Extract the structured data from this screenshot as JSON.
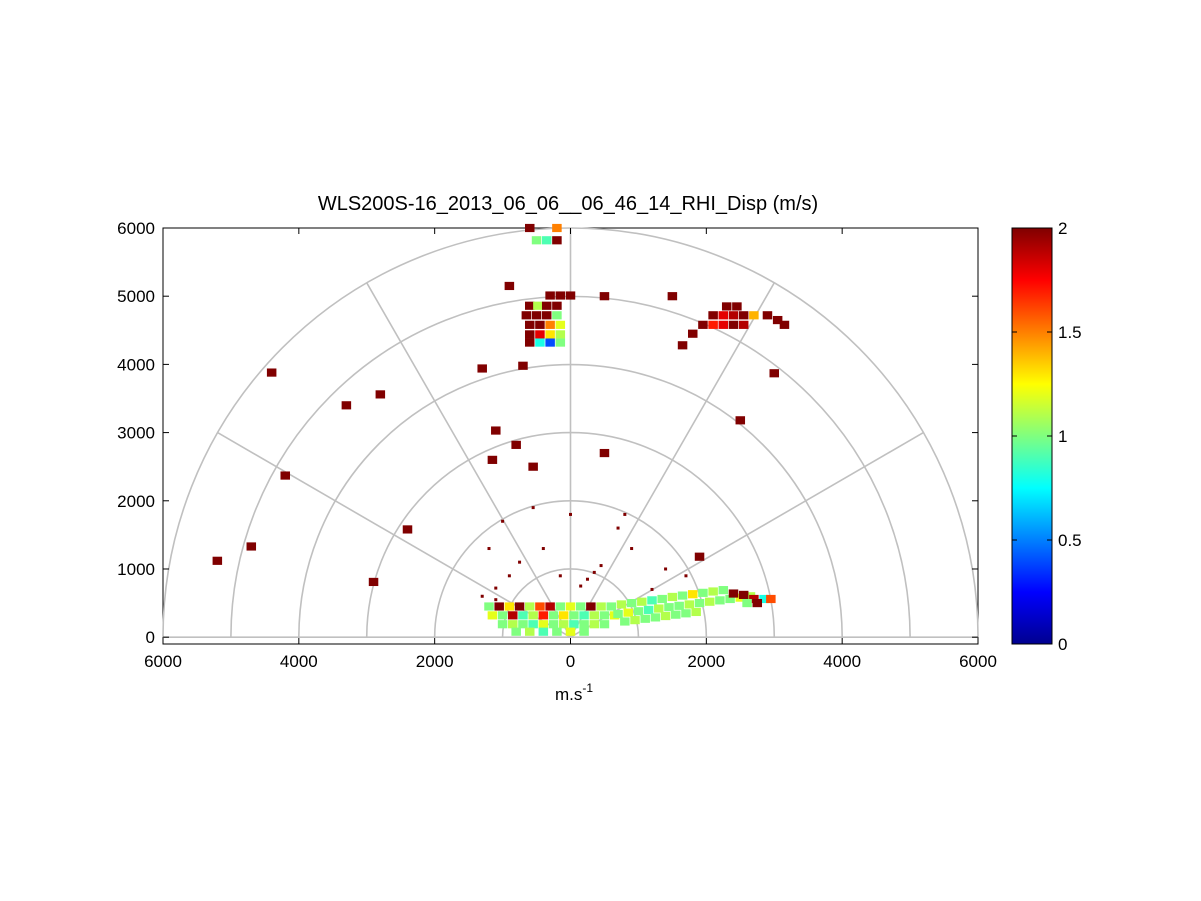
{
  "chart_data": {
    "type": "heatmap",
    "title": "WLS200S-16_2013_06_06__06_46_14_RHI_Disp (m/s)",
    "xlabel_base": "m.s",
    "xlabel_sup": "-1",
    "x_ticks": [
      "6000",
      "4000",
      "2000",
      "0",
      "2000",
      "4000",
      "6000"
    ],
    "y_ticks": [
      "0",
      "1000",
      "2000",
      "3000",
      "4000",
      "5000",
      "6000"
    ],
    "xlim": [
      -6000,
      6000
    ],
    "ylim": [
      -100,
      6000
    ],
    "polar_rings": [
      1000,
      2000,
      3000,
      4000,
      5000,
      6000
    ],
    "polar_spokes_deg": [
      0,
      30,
      60,
      90,
      120,
      150,
      180
    ],
    "colorbar": {
      "min": 0,
      "max": 2,
      "ticks": [
        "0",
        "0.5",
        "1",
        "1.5",
        "2"
      ],
      "colormap": "jet"
    },
    "cells": [
      [
        -600,
        6000,
        2.0
      ],
      [
        -200,
        6000,
        1.5
      ],
      [
        -500,
        5820,
        1.0
      ],
      [
        -350,
        5820,
        0.9
      ],
      [
        -200,
        5820,
        2.0
      ],
      [
        -900,
        5150,
        2.0
      ],
      [
        -300,
        5010,
        2.0
      ],
      [
        -150,
        5010,
        2.0
      ],
      [
        0,
        5010,
        2.0
      ],
      [
        500,
        5000,
        2.0
      ],
      [
        1500,
        5000,
        2.0
      ],
      [
        -600,
        4860,
        2.0
      ],
      [
        -480,
        4860,
        1.1
      ],
      [
        -350,
        4860,
        2.0
      ],
      [
        -200,
        4860,
        2.0
      ],
      [
        -650,
        4720,
        2.0
      ],
      [
        -500,
        4720,
        2.0
      ],
      [
        -350,
        4720,
        2.0
      ],
      [
        -200,
        4720,
        1.0
      ],
      [
        -600,
        4580,
        2.0
      ],
      [
        -450,
        4580,
        2.0
      ],
      [
        -300,
        4580,
        1.5
      ],
      [
        -150,
        4580,
        1.2
      ],
      [
        -600,
        4440,
        2.0
      ],
      [
        -450,
        4440,
        1.8
      ],
      [
        -300,
        4440,
        1.3
      ],
      [
        -150,
        4440,
        1.1
      ],
      [
        -600,
        4320,
        2.0
      ],
      [
        -450,
        4320,
        0.8
      ],
      [
        -300,
        4320,
        0.4
      ],
      [
        -150,
        4320,
        1.0
      ],
      [
        2300,
        4850,
        2.0
      ],
      [
        2450,
        4850,
        2.0
      ],
      [
        2100,
        4720,
        2.0
      ],
      [
        2250,
        4720,
        1.8
      ],
      [
        2400,
        4720,
        1.9
      ],
      [
        2550,
        4720,
        2.0
      ],
      [
        2700,
        4720,
        1.4
      ],
      [
        1950,
        4580,
        2.0
      ],
      [
        2100,
        4580,
        1.7
      ],
      [
        2250,
        4580,
        1.8
      ],
      [
        2400,
        4580,
        2.0
      ],
      [
        2550,
        4580,
        1.9
      ],
      [
        3050,
        4650,
        2.0
      ],
      [
        3150,
        4580,
        2.0
      ],
      [
        2900,
        4720,
        2.0
      ],
      [
        1800,
        4450,
        2.0
      ],
      [
        1650,
        4280,
        2.0
      ],
      [
        -4400,
        3880,
        2.0
      ],
      [
        -3300,
        3400,
        2.0
      ],
      [
        -2800,
        3560,
        2.0
      ],
      [
        -1300,
        3940,
        2.0
      ],
      [
        -700,
        3980,
        2.0
      ],
      [
        3000,
        3870,
        2.0
      ],
      [
        2500,
        3180,
        2.0
      ],
      [
        -1100,
        3030,
        2.0
      ],
      [
        -800,
        2820,
        2.0
      ],
      [
        -1150,
        2600,
        2.0
      ],
      [
        -550,
        2500,
        2.0
      ],
      [
        500,
        2700,
        2.0
      ],
      [
        -4200,
        2370,
        2.0
      ],
      [
        -2400,
        1580,
        2.0
      ],
      [
        -5200,
        1120,
        2.0
      ],
      [
        -4700,
        1330,
        2.0
      ],
      [
        -2900,
        810,
        2.0
      ],
      [
        1900,
        1180,
        2.0
      ],
      [
        -1200,
        450,
        1.0
      ],
      [
        -1050,
        450,
        2.0
      ],
      [
        -900,
        450,
        1.3
      ],
      [
        -750,
        450,
        2.0
      ],
      [
        -600,
        450,
        1.1
      ],
      [
        -450,
        450,
        1.6
      ],
      [
        -300,
        450,
        1.9
      ],
      [
        -150,
        450,
        1.0
      ],
      [
        0,
        450,
        1.2
      ],
      [
        150,
        450,
        1.0
      ],
      [
        300,
        450,
        2.0
      ],
      [
        450,
        450,
        1.1
      ],
      [
        -1150,
        320,
        1.2
      ],
      [
        -1000,
        320,
        1.0
      ],
      [
        -850,
        320,
        1.9
      ],
      [
        -700,
        320,
        0.9
      ],
      [
        -550,
        320,
        1.1
      ],
      [
        -400,
        320,
        1.7
      ],
      [
        -250,
        320,
        1.0
      ],
      [
        -100,
        320,
        1.3
      ],
      [
        50,
        320,
        1.0
      ],
      [
        200,
        320,
        0.9
      ],
      [
        350,
        320,
        1.1
      ],
      [
        500,
        320,
        1.0
      ],
      [
        650,
        320,
        1.2
      ],
      [
        -1000,
        190,
        1.0
      ],
      [
        -850,
        190,
        1.1
      ],
      [
        -700,
        190,
        1.0
      ],
      [
        -550,
        190,
        0.9
      ],
      [
        -400,
        190,
        1.2
      ],
      [
        -250,
        190,
        1.0
      ],
      [
        -100,
        190,
        1.1
      ],
      [
        50,
        190,
        0.9
      ],
      [
        200,
        190,
        1.0
      ],
      [
        350,
        190,
        1.1
      ],
      [
        500,
        190,
        1.0
      ],
      [
        -800,
        80,
        1.0
      ],
      [
        -600,
        80,
        1.1
      ],
      [
        -400,
        80,
        0.9
      ],
      [
        -200,
        80,
        1.0
      ],
      [
        0,
        80,
        1.2
      ],
      [
        200,
        80,
        1.0
      ],
      [
        600,
        450,
        1.0
      ],
      [
        750,
        480,
        1.1
      ],
      [
        900,
        500,
        1.0
      ],
      [
        1050,
        520,
        1.1
      ],
      [
        1200,
        540,
        0.9
      ],
      [
        1350,
        560,
        1.0
      ],
      [
        1500,
        590,
        1.1
      ],
      [
        1650,
        610,
        1.0
      ],
      [
        1800,
        630,
        1.3
      ],
      [
        1950,
        650,
        1.0
      ],
      [
        2100,
        670,
        1.1
      ],
      [
        2250,
        690,
        1.0
      ],
      [
        700,
        340,
        1.0
      ],
      [
        850,
        360,
        1.2
      ],
      [
        1000,
        380,
        1.0
      ],
      [
        1150,
        400,
        0.9
      ],
      [
        1300,
        420,
        1.1
      ],
      [
        1450,
        440,
        1.0
      ],
      [
        1600,
        460,
        1.0
      ],
      [
        1750,
        480,
        1.1
      ],
      [
        1900,
        500,
        1.0
      ],
      [
        2050,
        520,
        1.1
      ],
      [
        2200,
        540,
        1.0
      ],
      [
        2350,
        560,
        1.0
      ],
      [
        2500,
        580,
        1.2
      ],
      [
        2650,
        600,
        1.1
      ],
      [
        800,
        230,
        1.0
      ],
      [
        950,
        250,
        1.1
      ],
      [
        1100,
        270,
        1.0
      ],
      [
        1250,
        290,
        1.0
      ],
      [
        1400,
        310,
        1.1
      ],
      [
        1550,
        330,
        1.0
      ],
      [
        1700,
        350,
        1.0
      ],
      [
        1850,
        370,
        1.1
      ],
      [
        2400,
        640,
        2.0
      ],
      [
        2550,
        620,
        2.0
      ],
      [
        2700,
        560,
        1.9
      ],
      [
        2850,
        560,
        0.8
      ],
      [
        2950,
        560,
        1.6
      ],
      [
        2600,
        500,
        1.0
      ],
      [
        2750,
        500,
        2.0
      ]
    ],
    "sparse_points": [
      [
        -1100,
        720,
        2.0
      ],
      [
        -900,
        900,
        2.0
      ],
      [
        -1200,
        1300,
        2.0
      ],
      [
        -1000,
        1700,
        2.0
      ],
      [
        -550,
        1900,
        2.0
      ],
      [
        -750,
        1100,
        2.0
      ],
      [
        -400,
        1300,
        2.0
      ],
      [
        -150,
        900,
        2.0
      ],
      [
        0,
        1800,
        2.0
      ],
      [
        700,
        1600,
        2.0
      ],
      [
        800,
        1800,
        2.0
      ],
      [
        1400,
        1000,
        2.0
      ],
      [
        1700,
        900,
        2.0
      ],
      [
        1200,
        700,
        2.0
      ],
      [
        900,
        1300,
        2.0
      ],
      [
        -1300,
        600,
        2.0
      ],
      [
        -1100,
        550,
        2.0
      ],
      [
        150,
        750,
        2.0
      ],
      [
        250,
        850,
        2.0
      ],
      [
        350,
        950,
        2.0
      ],
      [
        450,
        1050,
        2.0
      ]
    ]
  }
}
